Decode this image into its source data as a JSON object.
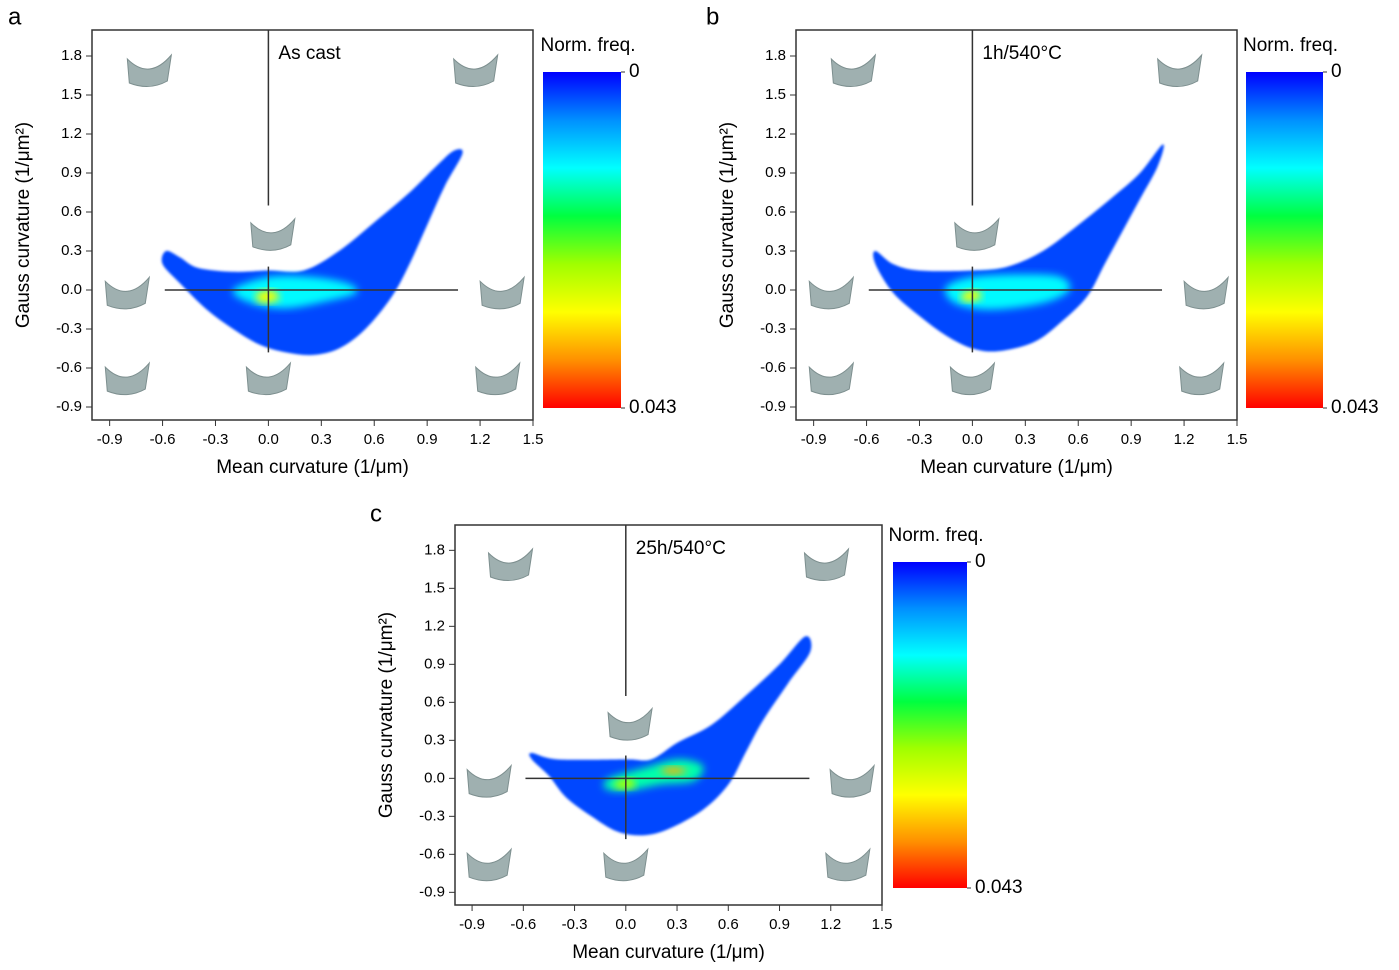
{
  "chart_data": [
    {
      "type": "density",
      "panel_label": "a",
      "annotation": "As cast",
      "x_label": "Mean curvature (1/μm)",
      "y_label": "Gauss curvature (1/μm²)",
      "xlim": [
        -1,
        1.5
      ],
      "ylim": [
        -1,
        2.0
      ],
      "xticks": [
        -0.9,
        -0.6,
        -0.3,
        {
          "value": 0,
          "label": "0.0"
        },
        0.3,
        0.6,
        0.9,
        1.2,
        1.5
      ],
      "yticks": [
        -0.9,
        -0.6,
        -0.3,
        {
          "value": 0,
          "label": "0.0"
        },
        0.3,
        0.6,
        0.9,
        1.2,
        1.5,
        1.8
      ],
      "colorbar_label": "Norm. freq.",
      "colorbar_lim": [
        0,
        0.043
      ],
      "colorbar_ticks": [
        0,
        0.043
      ],
      "colormap": [
        "#0000ff",
        "#0090ff",
        "#00ffff",
        "#00ff40",
        "#a0ff00",
        "#ffff00",
        "#ff9000",
        "#ff0000"
      ],
      "contours": [
        {
          "level": 0.003,
          "x": [
            -0.58,
            -0.5,
            -0.4,
            -0.2,
            0,
            0.2,
            0.4,
            0.6,
            0.8,
            0.95,
            1.05,
            1.1,
            1.0,
            0.9,
            0.8,
            0.7,
            0.55,
            0.4,
            0.25,
            0.1,
            -0.05,
            -0.2,
            -0.35,
            -0.5,
            -0.6
          ],
          "y": [
            0.3,
            0.25,
            0.17,
            0.14,
            0.15,
            0.15,
            0.3,
            0.52,
            0.75,
            0.95,
            1.07,
            1.05,
            0.8,
            0.5,
            0.2,
            -0.05,
            -0.3,
            -0.45,
            -0.5,
            -0.48,
            -0.42,
            -0.3,
            -0.15,
            0.05,
            0.2
          ]
        },
        {
          "level": 0.012,
          "x": [
            -0.2,
            0,
            0.25,
            0.45,
            0.5,
            0.35,
            0.1,
            -0.1
          ],
          "y": [
            0.0,
            0.1,
            0.1,
            0.05,
            -0.02,
            -0.08,
            -0.14,
            -0.1
          ]
        },
        {
          "level": 0.03,
          "x": [
            -0.07,
            0.02,
            0.06,
            -0.04
          ],
          "y": [
            -0.03,
            0.0,
            -0.07,
            -0.1
          ]
        }
      ]
    },
    {
      "type": "density",
      "panel_label": "b",
      "annotation": "1h/540°C",
      "x_label": "Mean curvature (1/μm)",
      "y_label": "Gauss curvature (1/μm²)",
      "xlim": [
        -1,
        1.5
      ],
      "ylim": [
        -1,
        2.0
      ],
      "xticks": [
        -0.9,
        -0.6,
        -0.3,
        {
          "value": 0,
          "label": "0.0"
        },
        0.3,
        0.6,
        0.9,
        1.2,
        1.5
      ],
      "yticks": [
        -0.9,
        -0.6,
        -0.3,
        {
          "value": 0,
          "label": "0.0"
        },
        0.3,
        0.6,
        0.9,
        1.2,
        1.5,
        1.8
      ],
      "colorbar_label": "Norm. freq.",
      "colorbar_lim": [
        0,
        0.043
      ],
      "colorbar_ticks": [
        0,
        0.043
      ],
      "colormap": [
        "#0000ff",
        "#0090ff",
        "#00ffff",
        "#00ff40",
        "#a0ff00",
        "#ffff00",
        "#ff9000",
        "#ff0000"
      ],
      "contours": [
        {
          "level": 0.003,
          "x": [
            -0.55,
            -0.45,
            -0.3,
            0,
            0.2,
            0.4,
            0.6,
            0.8,
            0.95,
            1.08,
            1.05,
            0.95,
            0.85,
            0.75,
            0.65,
            0.5,
            0.35,
            0.15,
            0,
            -0.15,
            -0.3,
            -0.45,
            -0.55
          ],
          "y": [
            0.3,
            0.2,
            0.15,
            0.15,
            0.18,
            0.3,
            0.5,
            0.72,
            0.9,
            1.12,
            0.95,
            0.7,
            0.45,
            0.2,
            -0.05,
            -0.25,
            -0.4,
            -0.47,
            -0.45,
            -0.35,
            -0.2,
            -0.02,
            0.2
          ]
        },
        {
          "level": 0.012,
          "x": [
            -0.15,
            0,
            0.3,
            0.5,
            0.55,
            0.4,
            0.1,
            -0.1
          ],
          "y": [
            0.02,
            0.1,
            0.12,
            0.1,
            0.0,
            -0.1,
            -0.15,
            -0.1
          ]
        },
        {
          "level": 0.03,
          "x": [
            -0.06,
            0.02,
            0.05,
            -0.04
          ],
          "y": [
            -0.03,
            0.0,
            -0.06,
            -0.09
          ]
        }
      ]
    },
    {
      "type": "density",
      "panel_label": "c",
      "annotation": "25h/540°C",
      "x_label": "Mean curvature (1/μm)",
      "y_label": "Gauss curvature (1/μm²)",
      "xlim": [
        -1,
        1.5
      ],
      "ylim": [
        -1,
        2.0
      ],
      "xticks": [
        -0.9,
        -0.6,
        -0.3,
        {
          "value": 0,
          "label": "0.0"
        },
        0.3,
        0.6,
        0.9,
        1.2,
        1.5
      ],
      "yticks": [
        -0.9,
        -0.6,
        -0.3,
        {
          "value": 0,
          "label": "0.0"
        },
        0.3,
        0.6,
        0.9,
        1.2,
        1.5,
        1.8
      ],
      "colorbar_label": "Norm. freq.",
      "colorbar_lim": [
        0,
        0.043
      ],
      "colorbar_ticks": [
        0,
        0.043
      ],
      "colormap": [
        "#0000ff",
        "#0090ff",
        "#00ffff",
        "#00ff40",
        "#a0ff00",
        "#ffff00",
        "#ff9000",
        "#ff0000"
      ],
      "contours": [
        {
          "level": 0.003,
          "x": [
            -0.55,
            -0.4,
            0,
            0.15,
            0.3,
            0.5,
            0.7,
            0.9,
            1.05,
            1.08,
            0.95,
            0.8,
            0.7,
            0.6,
            0.45,
            0.25,
            0.1,
            -0.05,
            -0.2,
            -0.35,
            -0.45,
            -0.55
          ],
          "y": [
            0.2,
            0.15,
            0.15,
            0.15,
            0.28,
            0.42,
            0.65,
            0.9,
            1.12,
            1.0,
            0.75,
            0.45,
            0.2,
            -0.05,
            -0.25,
            -0.4,
            -0.45,
            -0.42,
            -0.3,
            -0.15,
            0.02,
            0.15
          ]
        },
        {
          "level": 0.015,
          "x": [
            -0.1,
            0.1,
            0.3,
            0.45,
            0.4,
            0.2,
            0,
            -0.12
          ],
          "y": [
            0.0,
            0.08,
            0.15,
            0.1,
            -0.02,
            -0.05,
            -0.1,
            -0.08
          ]
        },
        {
          "level": 0.025,
          "x": [
            -0.06,
            0.03,
            0.05,
            -0.05
          ],
          "y": [
            -0.03,
            0.0,
            -0.07,
            -0.08
          ]
        },
        {
          "level": 0.035,
          "x": [
            0.2,
            0.28,
            0.36,
            0.28
          ],
          "y": [
            0.06,
            0.09,
            0.06,
            0.03
          ]
        }
      ]
    }
  ]
}
